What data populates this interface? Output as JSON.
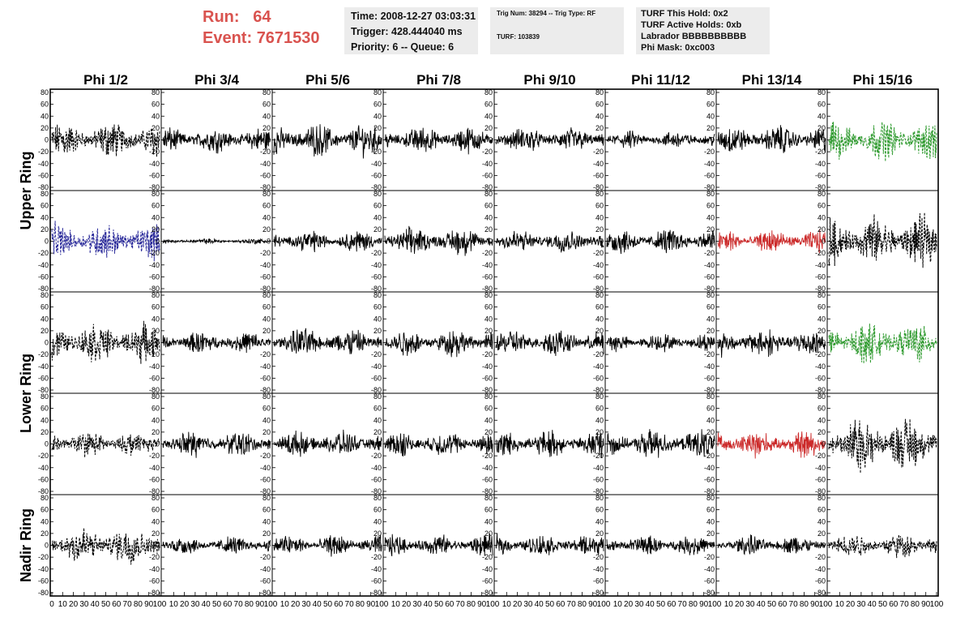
{
  "header": {
    "run_label": "Run:",
    "run_value": "64",
    "event_label": "Event:",
    "event_value": "7671530"
  },
  "info1": {
    "time": "Time: 2008-12-27 03:03:31",
    "trigger": "Trigger: 428.444040 ms",
    "priority": "Priority: 6 -- Queue: 6"
  },
  "info2": {
    "trig": "Trig Num: 38294 -- Trig Type: RF",
    "turf": "TURF: 103839"
  },
  "info3": {
    "hold": "TURF This Hold: 0x2",
    "active": "TURF Active Holds: 0xb",
    "labrador": "Labrador BBBBBBBBBB",
    "phimask": "Phi Mask: 0xc003"
  },
  "colors": {
    "title_red": "#d9534f",
    "info_bg": "#ececec",
    "trace_black": "#000000",
    "trace_green": "#2e9a2e",
    "trace_blue": "#2a2a9a",
    "trace_red": "#cc2a2a"
  },
  "chart_data": {
    "type": "line",
    "columns": [
      "Phi 1/2",
      "Phi 3/4",
      "Phi 5/6",
      "Phi 7/8",
      "Phi 9/10",
      "Phi 11/12",
      "Phi 13/14",
      "Phi 15/16"
    ],
    "row_labels": [
      "Upper Ring",
      "Lower Ring",
      "Nadir Ring"
    ],
    "row_label_spans": [
      [
        0,
        1
      ],
      [
        2,
        3
      ],
      [
        4,
        4
      ]
    ],
    "xlim": [
      0,
      100
    ],
    "ylim": [
      -80,
      80
    ],
    "yticks": [
      "80",
      "60",
      "40",
      "20",
      "0",
      "-20",
      "-40",
      "-60",
      "-80"
    ],
    "xtick_labels": [
      "0",
      "10",
      "20",
      "30",
      "40",
      "50",
      "60",
      "70",
      "80",
      "90",
      "100"
    ],
    "panels": [
      [
        {
          "a": 20,
          "s": "dash",
          "c": "black"
        },
        {
          "a": 14,
          "s": "solid",
          "c": "black"
        },
        {
          "a": 18,
          "s": "solid",
          "c": "black"
        },
        {
          "a": 15,
          "s": "solid",
          "c": "black"
        },
        {
          "a": 14,
          "s": "solid",
          "c": "black"
        },
        {
          "a": 10,
          "s": "solid",
          "c": "black"
        },
        {
          "a": 16,
          "s": "solid",
          "c": "black"
        },
        {
          "a": 22,
          "s": "dash",
          "c": "green"
        }
      ],
      [
        {
          "a": 20,
          "s": "dash",
          "c": "blue"
        },
        {
          "a": 3,
          "s": "solid",
          "c": "black"
        },
        {
          "a": 12,
          "s": "solid",
          "c": "black"
        },
        {
          "a": 16,
          "s": "solid",
          "c": "black"
        },
        {
          "a": 13,
          "s": "solid",
          "c": "black"
        },
        {
          "a": 14,
          "s": "solid",
          "c": "black"
        },
        {
          "a": 13,
          "s": "solid",
          "c": "red"
        },
        {
          "a": 28,
          "s": "dash",
          "c": "black"
        }
      ],
      [
        {
          "a": 22,
          "s": "dash",
          "c": "black"
        },
        {
          "a": 12,
          "s": "solid",
          "c": "black"
        },
        {
          "a": 16,
          "s": "solid",
          "c": "black"
        },
        {
          "a": 15,
          "s": "solid",
          "c": "black"
        },
        {
          "a": 15,
          "s": "solid",
          "c": "black"
        },
        {
          "a": 10,
          "s": "solid",
          "c": "black"
        },
        {
          "a": 16,
          "s": "solid",
          "c": "black"
        },
        {
          "a": 22,
          "s": "dash",
          "c": "green"
        }
      ],
      [
        {
          "a": 14,
          "s": "dash",
          "c": "black"
        },
        {
          "a": 14,
          "s": "solid",
          "c": "black"
        },
        {
          "a": 14,
          "s": "solid",
          "c": "black"
        },
        {
          "a": 14,
          "s": "solid",
          "c": "black"
        },
        {
          "a": 15,
          "s": "solid",
          "c": "black"
        },
        {
          "a": 16,
          "s": "solid",
          "c": "black"
        },
        {
          "a": 15,
          "s": "solid",
          "c": "red"
        },
        {
          "a": 30,
          "s": "dash",
          "c": "black"
        }
      ],
      [
        {
          "a": 22,
          "s": "dash",
          "c": "black"
        },
        {
          "a": 10,
          "s": "solid",
          "c": "black"
        },
        {
          "a": 12,
          "s": "solid",
          "c": "black"
        },
        {
          "a": 12,
          "s": "solid",
          "c": "black"
        },
        {
          "a": 12,
          "s": "solid",
          "c": "black"
        },
        {
          "a": 11,
          "s": "solid",
          "c": "black"
        },
        {
          "a": 11,
          "s": "solid",
          "c": "black"
        },
        {
          "a": 14,
          "s": "dash",
          "c": "black"
        }
      ]
    ]
  }
}
